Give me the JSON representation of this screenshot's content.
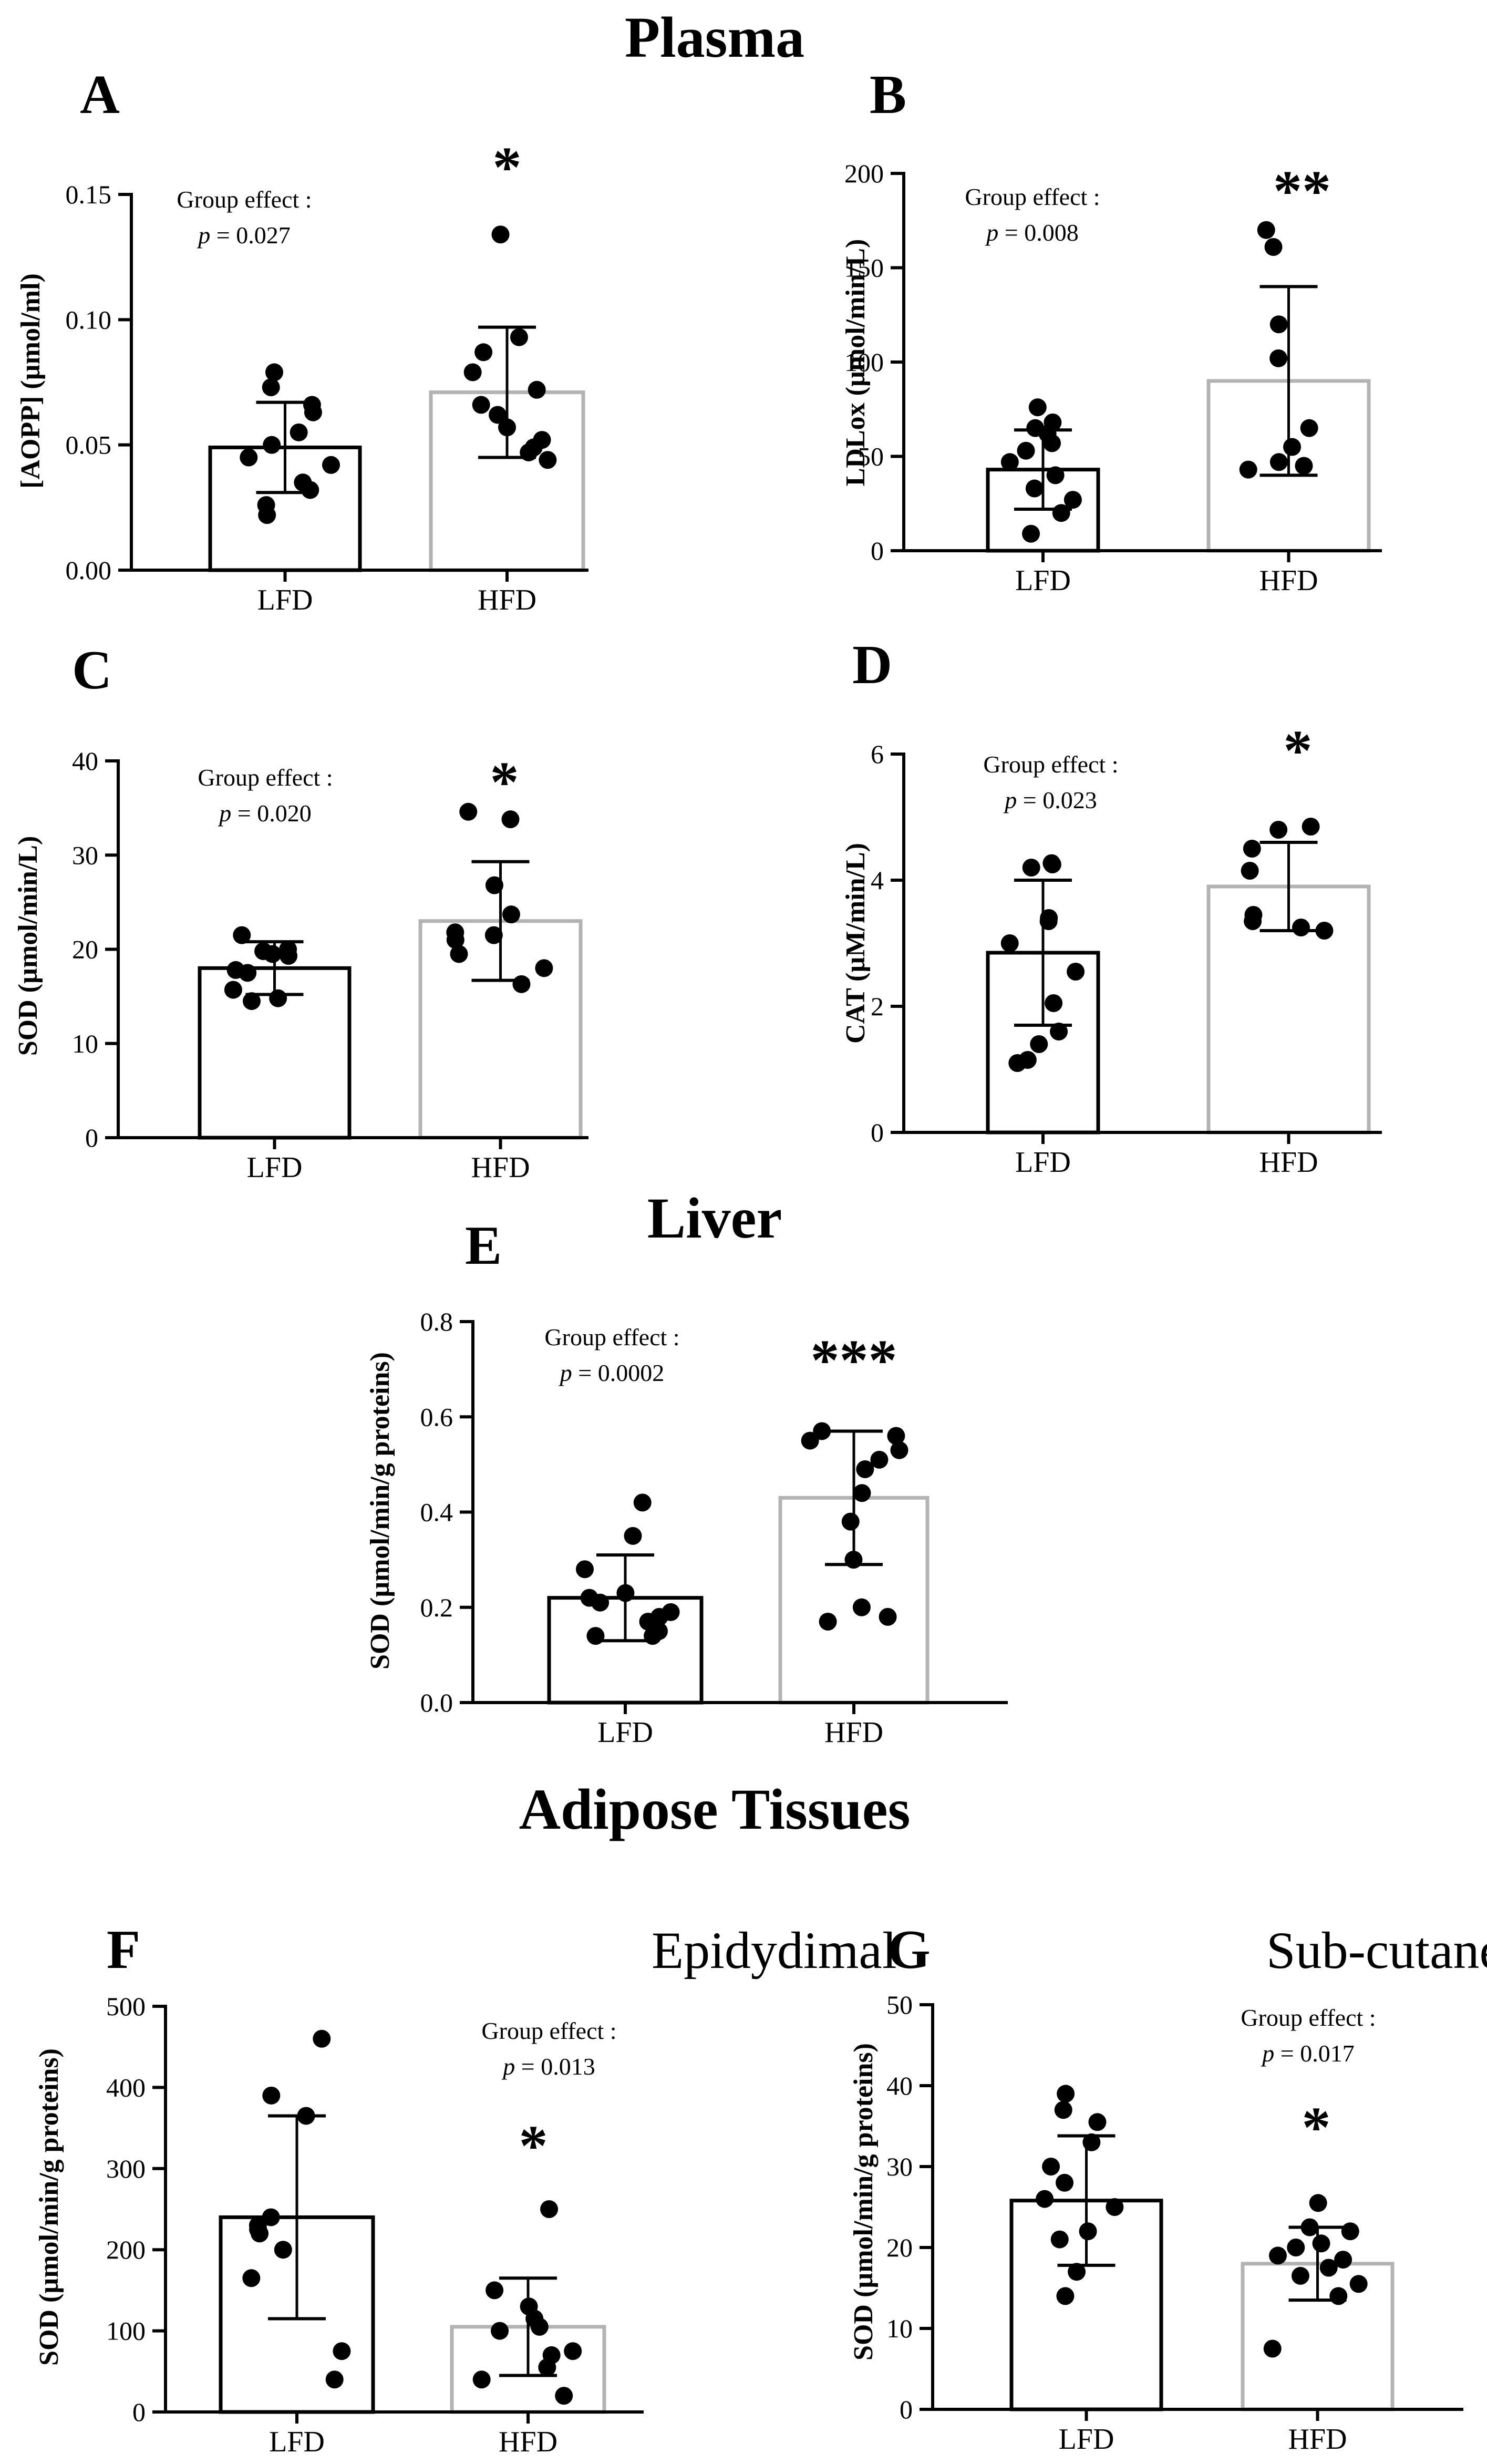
{
  "sections": {
    "plasma": "Plasma",
    "liver": "Liver",
    "adipose": "Adipose Tissues"
  },
  "colors": {
    "lfd_bar": "#000000",
    "hfd_bar": "#b3b3b3",
    "dots": "#000000",
    "axis": "#000000",
    "text": "#000000"
  },
  "chart_data": [
    {
      "id": "A",
      "panel_label": "A",
      "subtitle": "",
      "type": "bar",
      "ylabel": "[AOPP] (µmol/ml)",
      "categories": [
        "LFD",
        "HFD"
      ],
      "ylim": [
        0,
        0.15
      ],
      "yticks": [
        "0.00",
        "0.05",
        "0.10",
        "0.15"
      ],
      "means": [
        0.049,
        0.071
      ],
      "sd": [
        0.018,
        0.026
      ],
      "points": [
        [
          0.079,
          0.073,
          0.066,
          0.063,
          0.055,
          0.05,
          0.045,
          0.042,
          0.035,
          0.032,
          0.026,
          0.022
        ],
        [
          0.134,
          0.093,
          0.087,
          0.079,
          0.072,
          0.066,
          0.062,
          0.057,
          0.052,
          0.049,
          0.047,
          0.044
        ]
      ],
      "group_effect": "Group effect :",
      "p_prefix": "p",
      "p_value": "= 0.027",
      "significance": "*"
    },
    {
      "id": "B",
      "panel_label": "B",
      "subtitle": "",
      "type": "bar",
      "ylabel": "LDLox (µmol/min/L)",
      "categories": [
        "LFD",
        "HFD"
      ],
      "ylim": [
        0,
        200
      ],
      "yticks": [
        "0",
        "50",
        "100",
        "150",
        "200"
      ],
      "means": [
        43,
        90
      ],
      "sd": [
        21,
        50
      ],
      "points": [
        [
          76,
          68,
          65,
          62,
          57,
          53,
          47,
          40,
          33,
          27,
          20,
          9
        ],
        [
          170,
          161,
          120,
          102,
          65,
          55,
          47,
          45,
          43
        ]
      ],
      "group_effect": "Group effect :",
      "p_prefix": "p",
      "p_value": "= 0.008",
      "significance": "**"
    },
    {
      "id": "C",
      "panel_label": "C",
      "subtitle": "",
      "type": "bar",
      "ylabel": "SOD (µmol/min/L)",
      "categories": [
        "LFD",
        "HFD"
      ],
      "ylim": [
        0,
        40
      ],
      "yticks": [
        "0",
        "10",
        "20",
        "30",
        "40"
      ],
      "means": [
        18,
        23
      ],
      "sd": [
        2.8,
        6.3
      ],
      "points": [
        [
          21.5,
          20,
          19.8,
          19.3,
          19.5,
          17.8,
          17.5,
          15.7,
          14.8,
          14.5
        ],
        [
          34.6,
          33.8,
          26.8,
          23.7,
          21.8,
          21.5,
          21.0,
          19.5,
          18.0,
          16.3
        ]
      ],
      "group_effect": "Group effect :",
      "p_prefix": "p",
      "p_value": "= 0.020",
      "significance": "*"
    },
    {
      "id": "D",
      "panel_label": "D",
      "subtitle": "",
      "type": "bar",
      "ylabel": "CAT (µM/min/L)",
      "categories": [
        "LFD",
        "HFD"
      ],
      "ylim": [
        0,
        6
      ],
      "yticks": [
        "0",
        "2",
        "4",
        "6"
      ],
      "means": [
        2.85,
        3.9
      ],
      "sd": [
        1.15,
        0.7
      ],
      "points": [
        [
          4.27,
          4.25,
          4.2,
          3.4,
          3.35,
          3.0,
          2.55,
          2.05,
          1.6,
          1.4,
          1.15,
          1.1
        ],
        [
          4.85,
          4.8,
          4.5,
          4.15,
          3.45,
          3.35,
          3.25,
          3.2
        ]
      ],
      "group_effect": "Group effect :",
      "p_prefix": "p",
      "p_value": "= 0.023",
      "significance": "*"
    },
    {
      "id": "E",
      "panel_label": "E",
      "subtitle": "",
      "type": "bar",
      "ylabel": "SOD (µmol/min/g proteins)",
      "categories": [
        "LFD",
        "HFD"
      ],
      "ylim": [
        0,
        0.8
      ],
      "yticks": [
        "0.0",
        "0.2",
        "0.4",
        "0.6",
        "0.8"
      ],
      "means": [
        0.22,
        0.43
      ],
      "sd": [
        0.09,
        0.14
      ],
      "points": [
        [
          0.42,
          0.35,
          0.28,
          0.23,
          0.22,
          0.21,
          0.19,
          0.18,
          0.17,
          0.15,
          0.14,
          0.14
        ],
        [
          0.57,
          0.56,
          0.55,
          0.53,
          0.51,
          0.49,
          0.44,
          0.38,
          0.3,
          0.2,
          0.18,
          0.17
        ]
      ],
      "group_effect": "Group effect :",
      "p_prefix": "p",
      "p_value": "= 0.0002",
      "significance": "***"
    },
    {
      "id": "F",
      "panel_label": "F",
      "subtitle": "Epidydimal",
      "type": "bar",
      "ylabel": "SOD (µmol/min/g proteins)",
      "categories": [
        "LFD",
        "HFD"
      ],
      "ylim": [
        0,
        500
      ],
      "yticks": [
        "0",
        "100",
        "200",
        "300",
        "400",
        "500"
      ],
      "means": [
        240,
        105
      ],
      "sd": [
        125,
        60
      ],
      "points": [
        [
          460,
          390,
          365,
          240,
          230,
          225,
          220,
          200,
          165,
          75,
          40
        ],
        [
          250,
          150,
          130,
          115,
          105,
          100,
          75,
          70,
          55,
          40,
          20
        ]
      ],
      "group_effect": "Group effect :",
      "p_prefix": "p",
      "p_value": "= 0.013",
      "significance": "*"
    },
    {
      "id": "G",
      "panel_label": "G",
      "subtitle": "Sub-cutaneous",
      "type": "bar",
      "ylabel": "SOD (µmol/min/g proteins)",
      "categories": [
        "LFD",
        "HFD"
      ],
      "ylim": [
        0,
        50
      ],
      "yticks": [
        "0",
        "10",
        "20",
        "30",
        "40",
        "50"
      ],
      "means": [
        25.8,
        18
      ],
      "sd": [
        8,
        4.5
      ],
      "points": [
        [
          39,
          37,
          35.5,
          33,
          30,
          28,
          26,
          25,
          22,
          21,
          17,
          14
        ],
        [
          25.5,
          22.5,
          22,
          20.5,
          20,
          19,
          18.5,
          17.5,
          16.5,
          15.5,
          14,
          7.5
        ]
      ],
      "group_effect": "Group effect :",
      "p_prefix": "p",
      "p_value": "= 0.017",
      "significance": "*"
    }
  ]
}
